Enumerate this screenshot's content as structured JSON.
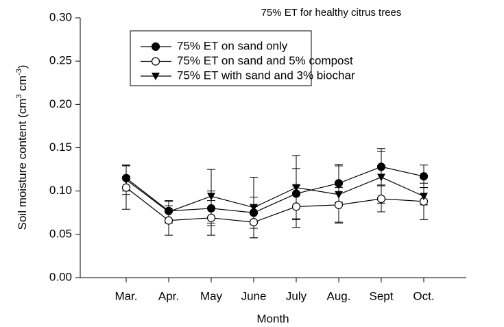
{
  "chart_data": {
    "type": "line",
    "title": "75% ET for healthy citrus trees",
    "xlabel": "Month",
    "ylabel_parts": [
      "Soil moisture content (cm",
      "3",
      " cm",
      "-3",
      ")"
    ],
    "categories": [
      "Mar.",
      "Apr.",
      "May",
      "June",
      "July",
      "Aug.",
      "Sept",
      "Oct."
    ],
    "ylim": [
      0,
      0.3
    ],
    "yticks": [
      {
        "value": 0,
        "label": "0.00"
      },
      0.05,
      {
        "value": 0.1,
        "label": "0.10"
      },
      0.15,
      {
        "value": 0.2,
        "label": "0.20"
      },
      0.25,
      {
        "value": 0.3,
        "label": "0.30"
      }
    ],
    "series": [
      {
        "name": "75% ET on sand only",
        "color": "#000000",
        "marker": "filled-circle",
        "values": [
          0.115,
          0.077,
          0.08,
          0.075,
          0.097,
          0.109,
          0.128,
          0.117
        ],
        "errors": [
          0.015,
          0.011,
          0.02,
          0.018,
          0.029,
          0.022,
          0.021,
          0.013
        ]
      },
      {
        "name": "75% ET on sand and 5% compost",
        "color": "#000000",
        "marker": "open-circle",
        "values": [
          0.104,
          0.066,
          0.069,
          0.064,
          0.082,
          0.084,
          0.091,
          0.088
        ],
        "errors": [
          0.025,
          0.017,
          0.02,
          0.018,
          0.024,
          0.02,
          0.015,
          0.021
        ]
      },
      {
        "name": "75% ET with sand and 3% biochar",
        "color": "#000000",
        "marker": "triangle-down",
        "values": [
          0.113,
          0.076,
          0.094,
          0.081,
          0.104,
          0.096,
          0.116,
          0.094
        ],
        "errors": [
          0.017,
          0.013,
          0.031,
          0.035,
          0.037,
          0.033,
          0.03,
          0.01
        ]
      }
    ],
    "legend": "upper-left"
  }
}
